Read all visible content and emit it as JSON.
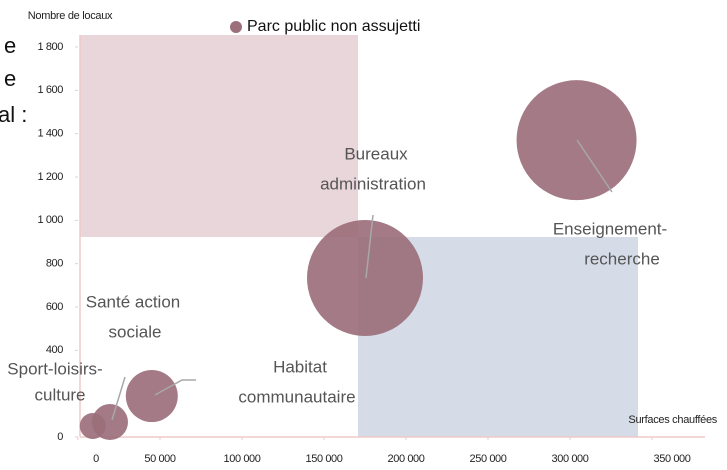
{
  "fragments": [
    "e",
    "e",
    "al :"
  ],
  "chart_data": {
    "type": "bubble",
    "xlabel": "Surfaces chauffées",
    "ylabel": "Nombre de locaux",
    "xlim": [
      0,
      350000
    ],
    "ylim": [
      0,
      1800
    ],
    "xticks": [
      0,
      {
        "value": 50000,
        "label": "50 000"
      },
      {
        "value": 100000,
        "label": "100 000"
      },
      {
        "value": 150000,
        "label": "150 000"
      },
      {
        "value": 200000,
        "label": "200 000"
      },
      {
        "value": 250000,
        "label": "250 000"
      },
      {
        "value": 300000,
        "label": "300 000"
      },
      {
        "value": 350000,
        "label": "350 000"
      }
    ],
    "yticks": [
      0,
      400,
      600,
      800,
      {
        "value": 1000,
        "label": "1 000"
      },
      {
        "value": 1200,
        "label": "1 200"
      },
      {
        "value": 1400,
        "label": "1 400"
      },
      {
        "value": 1600,
        "label": "1 600"
      },
      {
        "value": 1800,
        "label": "1 800"
      }
    ],
    "series": [
      {
        "name": "Parc public non assujetti",
        "color": "#9b6f7b",
        "x": [
          304000,
          175000,
          45000,
          19500,
          9000
        ],
        "values": [
          1370,
          734,
          189,
          69,
          51
        ],
        "sizes": [
          3600,
          3364,
          676,
          324,
          169
        ],
        "labels": [
          [
            "Enseignement-",
            "recherche"
          ],
          [
            "Bureaux",
            "administration"
          ],
          [
            "Habitat",
            "communautaire"
          ],
          [
            "Santé action",
            "sociale"
          ],
          [
            "Sport-loisirs-",
            "culture"
          ]
        ]
      }
    ]
  }
}
